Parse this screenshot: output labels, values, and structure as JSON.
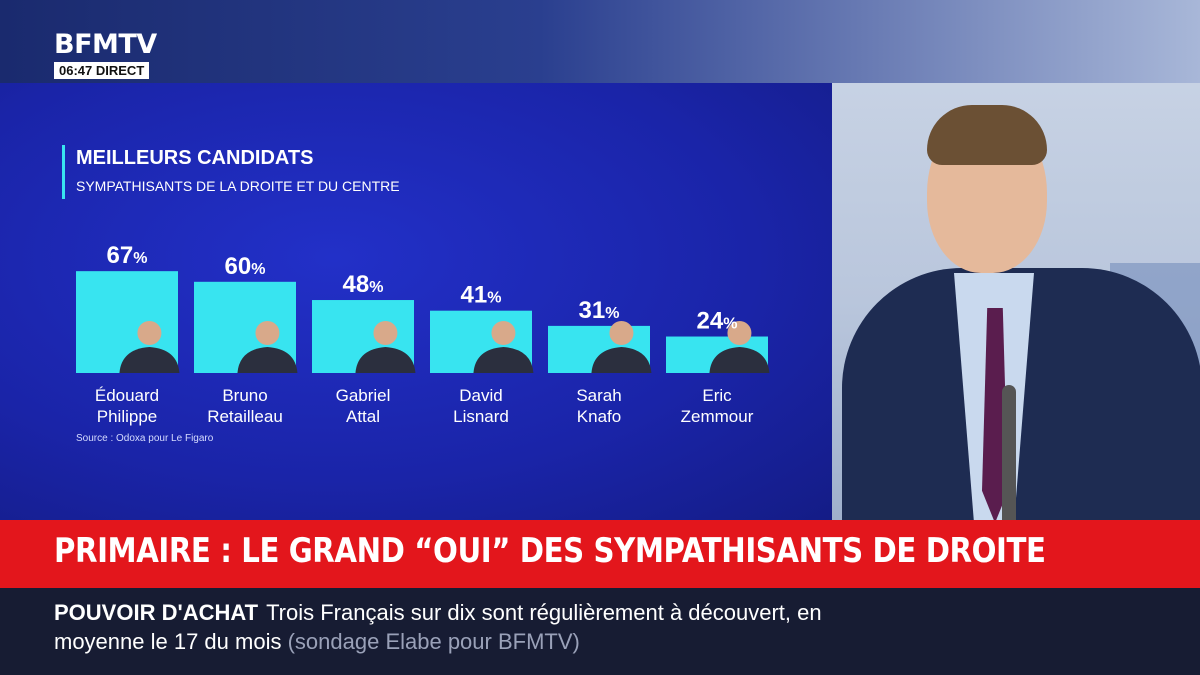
{
  "channel": {
    "logo": "BFMTV",
    "time": "06:47",
    "status": "DIRECT"
  },
  "chart": {
    "title": "MEILLEURS CANDIDATS",
    "subtitle": "SYMPATHISANTS DE LA DROITE ET DU CENTRE",
    "source": "Source : Odoxa pour Le Figaro",
    "accent_color": "#38e4f0",
    "panel_color": "#1c27b5"
  },
  "chart_data": {
    "type": "bar",
    "title": "MEILLEURS CANDIDATS",
    "subtitle": "SYMPATHISANTS DE LA DROITE ET DU CENTRE",
    "unit": "%",
    "categories": [
      [
        "Édouard",
        "Philippe"
      ],
      [
        "Bruno",
        "Retailleau"
      ],
      [
        "Gabriel",
        "Attal"
      ],
      [
        "David",
        "Lisnard"
      ],
      [
        "Sarah",
        "Knafo"
      ],
      [
        "Eric",
        "Zemmour"
      ]
    ],
    "values": [
      67,
      60,
      48,
      41,
      31,
      24
    ],
    "bar_color": "#38e4f0",
    "ylim": [
      0,
      100
    ]
  },
  "headline": "PRIMAIRE : LE GRAND “OUI” DES SYMPATHISANTS DE DROITE",
  "ticker": {
    "label": "POUVOIR D'ACHAT",
    "line1": "Trois Français sur dix sont régulièrement à découvert, en",
    "line2": "moyenne le 17 du mois",
    "source": "(sondage Elabe pour BFMTV)"
  }
}
